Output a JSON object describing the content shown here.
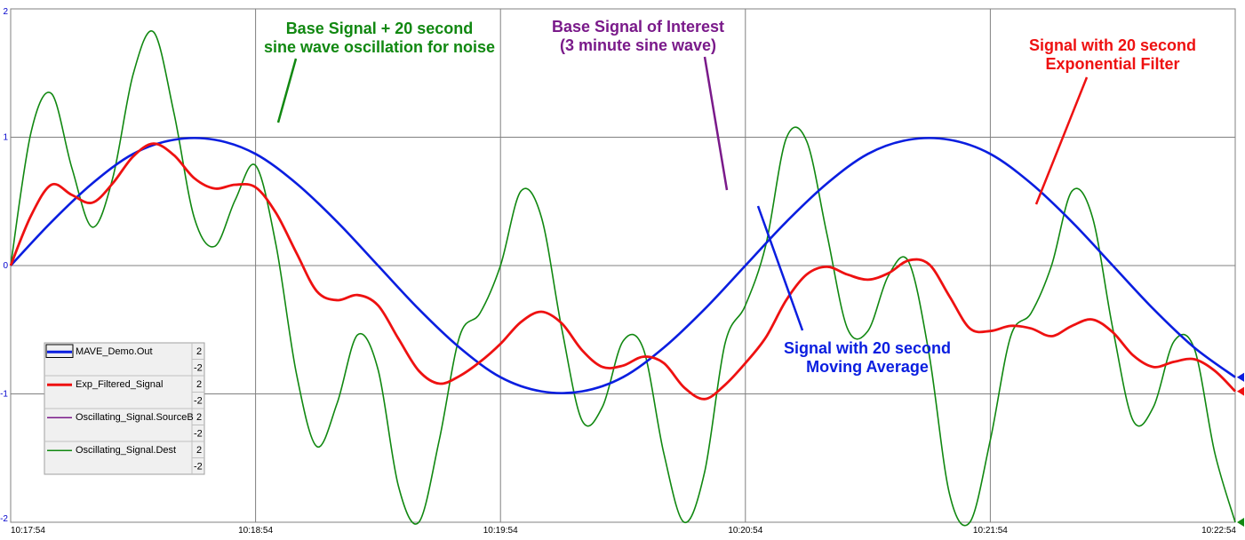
{
  "chart_data": {
    "type": "line",
    "x_ticks": [
      "10:17:54",
      "10:18:54",
      "10:19:54",
      "10:20:54",
      "10:21:54",
      "10:22:54"
    ],
    "x_range_seconds": [
      0,
      300
    ],
    "ylim": [
      -2,
      2
    ],
    "y_ticks": [
      "2",
      "1",
      "0",
      "-1",
      "-2"
    ],
    "grid": true,
    "series": [
      {
        "name": "Oscillating_Signal.Dest",
        "color": "#118811",
        "x_seconds": [
          0,
          5,
          10,
          15,
          20,
          25,
          30,
          35,
          40,
          45,
          50,
          55,
          60,
          65,
          70,
          75,
          80,
          85,
          90,
          95,
          100,
          105,
          110,
          115,
          120,
          125,
          130,
          135,
          140,
          145,
          150,
          155,
          160,
          165,
          170,
          175,
          180,
          185,
          190,
          195,
          200,
          205,
          210,
          215,
          220,
          225,
          230,
          235,
          240,
          245,
          250,
          255,
          260,
          265,
          270,
          275,
          280,
          285,
          290,
          295,
          300
        ],
        "values": [
          0.0,
          1.04,
          1.34,
          0.76,
          0.3,
          0.68,
          1.49,
          1.82,
          1.19,
          0.37,
          0.15,
          0.51,
          0.78,
          0.16,
          -0.84,
          -1.41,
          -1.07,
          -0.54,
          -0.81,
          -1.72,
          -2.0,
          -1.36,
          -0.55,
          -0.37,
          0.0,
          0.58,
          0.38,
          -0.49,
          -1.21,
          -1.1,
          -0.59,
          -0.65,
          -1.46,
          -2.0,
          -1.61,
          -0.61,
          -0.31,
          0.16,
          0.99,
          0.97,
          0.24,
          -0.49,
          -0.51,
          -0.08,
          0.03,
          -0.69,
          -1.78,
          -2.0,
          -1.36,
          -0.55,
          -0.37,
          0.0,
          0.58,
          0.38,
          -0.49,
          -1.21,
          -1.1,
          -0.59,
          -0.65,
          -1.46,
          -2.0
        ]
      },
      {
        "name": "Oscillating_Signal.SourceB",
        "color": "#7a1a8a",
        "x_seconds": [
          0,
          10,
          20,
          30,
          40,
          50,
          60,
          70,
          80,
          90,
          100,
          110,
          120,
          130,
          140,
          150,
          160,
          170,
          180,
          190,
          200,
          210,
          220,
          230,
          240,
          250,
          260,
          270,
          280,
          290,
          300
        ],
        "values": [
          0.0,
          0.34,
          0.64,
          0.87,
          0.98,
          0.98,
          0.87,
          0.64,
          0.34,
          0.0,
          -0.34,
          -0.64,
          -0.87,
          -0.98,
          -0.98,
          -0.87,
          -0.64,
          -0.34,
          0.0,
          0.34,
          0.64,
          0.87,
          0.98,
          0.98,
          0.87,
          0.64,
          0.34,
          0.0,
          -0.34,
          -0.64,
          -0.87
        ]
      },
      {
        "name": "MAVE_Demo.Out",
        "color": "#0a1ee0",
        "x_seconds": [
          0,
          10,
          20,
          30,
          40,
          50,
          60,
          70,
          80,
          90,
          100,
          110,
          120,
          130,
          140,
          150,
          160,
          170,
          180,
          190,
          200,
          210,
          220,
          230,
          240,
          250,
          260,
          270,
          280,
          290,
          300
        ],
        "values": [
          0.0,
          0.34,
          0.64,
          0.87,
          0.98,
          0.98,
          0.87,
          0.64,
          0.34,
          0.0,
          -0.34,
          -0.64,
          -0.87,
          -0.98,
          -0.98,
          -0.87,
          -0.64,
          -0.34,
          0.0,
          0.34,
          0.64,
          0.87,
          0.98,
          0.98,
          0.87,
          0.64,
          0.34,
          0.0,
          -0.34,
          -0.64,
          -0.87
        ]
      },
      {
        "name": "Exp_Filtered_Signal",
        "color": "#ee1111",
        "x_seconds": [
          0,
          5,
          10,
          15,
          20,
          25,
          30,
          35,
          40,
          45,
          50,
          55,
          60,
          65,
          70,
          75,
          80,
          85,
          90,
          95,
          100,
          105,
          110,
          115,
          120,
          125,
          130,
          135,
          140,
          145,
          150,
          155,
          160,
          165,
          170,
          175,
          180,
          185,
          190,
          195,
          200,
          205,
          210,
          215,
          220,
          225,
          230,
          235,
          240,
          245,
          250,
          255,
          260,
          265,
          270,
          275,
          280,
          285,
          290,
          295,
          300
        ],
        "values": [
          0.0,
          0.39,
          0.63,
          0.55,
          0.49,
          0.64,
          0.85,
          0.95,
          0.86,
          0.68,
          0.6,
          0.63,
          0.61,
          0.41,
          0.1,
          -0.2,
          -0.27,
          -0.23,
          -0.31,
          -0.57,
          -0.82,
          -0.92,
          -0.86,
          -0.75,
          -0.61,
          -0.44,
          -0.36,
          -0.45,
          -0.66,
          -0.79,
          -0.78,
          -0.71,
          -0.76,
          -0.95,
          -1.04,
          -0.93,
          -0.76,
          -0.56,
          -0.27,
          -0.07,
          -0.01,
          -0.07,
          -0.11,
          -0.06,
          0.04,
          0.01,
          -0.24,
          -0.49,
          -0.51,
          -0.47,
          -0.49,
          -0.55,
          -0.47,
          -0.42,
          -0.52,
          -0.7,
          -0.79,
          -0.75,
          -0.73,
          -0.82,
          -0.98
        ]
      }
    ],
    "annotations": [
      {
        "text": [
          "Base Signal + 20 second",
          "sine wave oscillation for noise"
        ],
        "color": "#118811",
        "points_to": "Oscillating_Signal.Dest"
      },
      {
        "text": [
          "Base Signal of Interest",
          "(3 minute sine wave)"
        ],
        "color": "#7a1a8a",
        "points_to": "Oscillating_Signal.SourceB"
      },
      {
        "text": [
          "Signal with 20 second",
          "Exponential Filter"
        ],
        "color": "#ee1111",
        "points_to": "Exp_Filtered_Signal"
      },
      {
        "text": [
          "Signal with 20 second",
          "Moving Average"
        ],
        "color": "#0a1ee0",
        "points_to": "MAVE_Demo.Out"
      }
    ],
    "legend": {
      "placement": "bottom-left",
      "entries": [
        {
          "name": "MAVE_Demo.Out",
          "max": "2",
          "min": "-2",
          "selected": true
        },
        {
          "name": "Exp_Filtered_Signal",
          "max": "2",
          "min": "-2",
          "selected": false
        },
        {
          "name": "Oscillating_Signal.SourceB",
          "max": "2",
          "min": "-2",
          "selected": false
        },
        {
          "name": "Oscillating_Signal.Dest",
          "max": "2",
          "min": "-2",
          "selected": false
        }
      ]
    }
  }
}
